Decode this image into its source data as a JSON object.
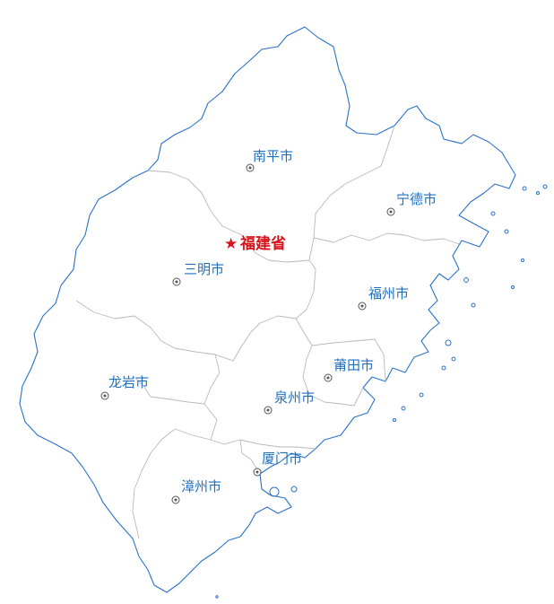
{
  "province": {
    "label": "福建省",
    "star_icon": "star-icon",
    "color": "#d6131a"
  },
  "cities": [
    {
      "id": "nanping",
      "label": "南平市"
    },
    {
      "id": "ningde",
      "label": "宁德市"
    },
    {
      "id": "sanming",
      "label": "三明市"
    },
    {
      "id": "fuzhou",
      "label": "福州市"
    },
    {
      "id": "putian",
      "label": "莆田市"
    },
    {
      "id": "longyan",
      "label": "龙岩市"
    },
    {
      "id": "quanzhou",
      "label": "泉州市"
    },
    {
      "id": "xiamen",
      "label": "厦门市"
    },
    {
      "id": "zhangzhou",
      "label": "漳州市"
    }
  ],
  "colors": {
    "outline": "#2a72c9",
    "internal_border": "#b9b9b9",
    "city_label": "#1f6fc0",
    "province_label": "#d6131a"
  },
  "city_marker_icon": "circled-dot-icon"
}
